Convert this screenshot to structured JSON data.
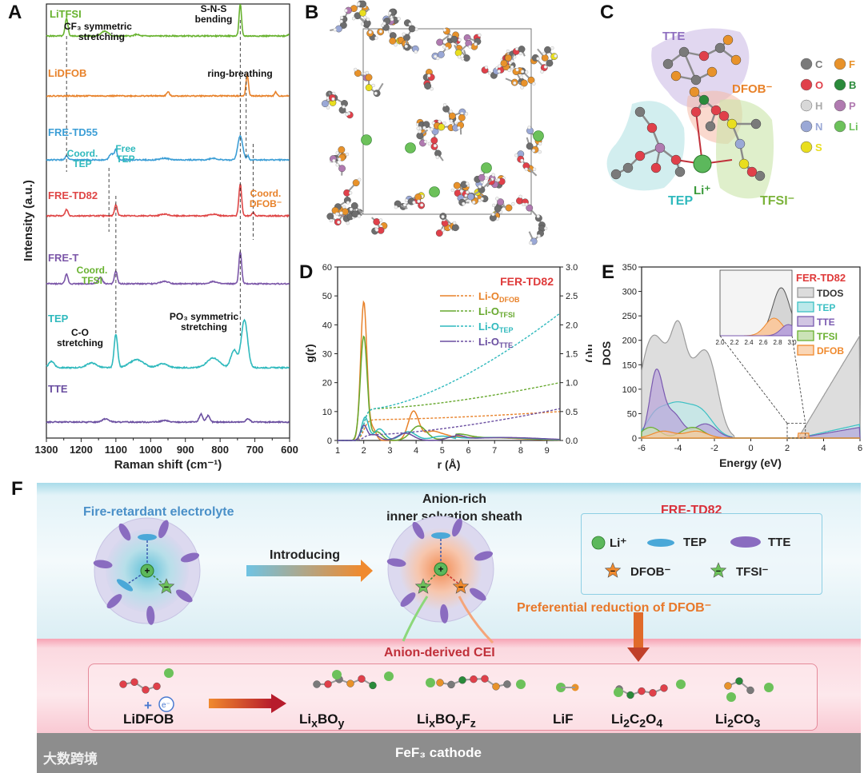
{
  "panels": {
    "A": "A",
    "B": "B",
    "C": "C",
    "D": "D",
    "E": "E",
    "F": "F"
  },
  "colors": {
    "LiTFSI": "#67b22e",
    "LiDFOB": "#e8822a",
    "FRE-TD55": "#3c9ed6",
    "FRE-TD82": "#df4646",
    "FRE-T": "#7b56a8",
    "TEP": "#2fb9bd",
    "TTE": "#6a4ea0",
    "DFOB": "#f08a2e"
  },
  "panel_a": {
    "ylabel": "Intensity (a.u.)",
    "xlabel": "Raman shift (cm⁻¹)",
    "ticks": [
      "1300",
      "1200",
      "1100",
      "1000",
      "900",
      "800",
      "700",
      "600"
    ],
    "labels": {
      "litfsi": "LiTFSI",
      "lidfob": "LiDFOB",
      "td55": "FRE-TD55",
      "td82": "FRE-TD82",
      "fret": "FRE-T",
      "tep": "TEP",
      "tte": "TTE"
    },
    "annotations": {
      "cf3_1": "CF₃ symmetric",
      "cf3_2": "stretching",
      "sns_1": "S-N-S",
      "sns_2": "bending",
      "ring": "ring-breathing",
      "coordtep_1": "Coord.",
      "coordtep_2": "TEP",
      "freetep_1": "Free",
      "freetep_2": "TEP",
      "coorddfob_1": "Coord.",
      "coorddfob_2": "DFOB⁻",
      "coordtfsi_1": "Coord.",
      "coordtfsi_2": "TFSI",
      "co_1": "C-O",
      "co_2": "stretching",
      "po3_1": "PO₃ symmetric",
      "po3_2": "stretching"
    }
  },
  "panel_c": {
    "tte": "TTE",
    "dfob": "DFOB⁻",
    "tep": "TEP",
    "tfsi": "TFSI⁻",
    "li": "Li⁺",
    "legend": [
      {
        "sym": "C",
        "color": "#7a7a7a"
      },
      {
        "sym": "O",
        "color": "#e0404a"
      },
      {
        "sym": "H",
        "color": "#d8d8d8"
      },
      {
        "sym": "N",
        "color": "#9aa8d6"
      },
      {
        "sym": "S",
        "color": "#e9de1e"
      },
      {
        "sym": "F",
        "color": "#e8922a"
      },
      {
        "sym": "B",
        "color": "#2a8a3a"
      },
      {
        "sym": "P",
        "color": "#b07ab0"
      },
      {
        "sym": "Li",
        "color": "#6cc15a"
      }
    ]
  },
  "panel_d": {
    "title": "FER-TD82",
    "ylabel_left": "g(r)",
    "ylabel_right": "n(r)",
    "xlabel": "r (Å)",
    "left_ticks": [
      "0",
      "10",
      "20",
      "30",
      "40",
      "50",
      "60"
    ],
    "right_ticks": [
      "0.0",
      "0.5",
      "1.0",
      "1.5",
      "2.0",
      "2.5",
      "3.0"
    ],
    "x_ticks": [
      "1",
      "2",
      "3",
      "4",
      "5",
      "6",
      "7",
      "8",
      "9"
    ],
    "legend": [
      {
        "main": "Li-O",
        "sub": "DFOB",
        "color": "#e8822a"
      },
      {
        "main": "Li-O",
        "sub": "TFSI",
        "color": "#67a82e"
      },
      {
        "main": "Li-O",
        "sub": "TEP",
        "color": "#2fb9bd"
      },
      {
        "main": "Li-O",
        "sub": "TTE",
        "color": "#6a4ea0"
      }
    ]
  },
  "panel_e": {
    "title": "FER-TD82",
    "ylabel": "DOS",
    "xlabel": "Energy (eV)",
    "y_ticks": [
      "0",
      "50",
      "100",
      "150",
      "200",
      "250",
      "300",
      "350"
    ],
    "x_ticks": [
      "-6",
      "-4",
      "-2",
      "0",
      "2",
      "4",
      "6"
    ],
    "inset_ticks": [
      "2.0",
      "2.2",
      "2.4",
      "2.6",
      "2.8",
      "3.0"
    ],
    "legend": [
      {
        "label": "TDOS",
        "color": "#9a9a9a"
      },
      {
        "label": "TEP",
        "color": "#3cc0c4"
      },
      {
        "label": "TTE",
        "color": "#7a5ab0"
      },
      {
        "label": "TFSI",
        "color": "#6ab030"
      },
      {
        "label": "DFOB",
        "color": "#f08a2e"
      }
    ]
  },
  "panel_f": {
    "fire": "Fire-retardant electrolyte",
    "anion_rich_1": "Anion-rich",
    "anion_rich_2": "inner solvation sheath",
    "introducing_1": "Introducing",
    "introducing_2": "LiDFOB",
    "fre_td82": "FRE-TD82",
    "legend_li": "Li⁺",
    "legend_tep": "TEP",
    "legend_tte": "TTE",
    "legend_dfob": "DFOB⁻",
    "legend_tfsi": "TFSI⁻",
    "preferential": "Preferential reduction of DFOB⁻",
    "anion_cei": "Anion-derived CEI",
    "products": [
      {
        "main": "LiDFOB",
        "html": "LiDFOB"
      },
      {
        "main": "LixBOy",
        "html": "Li<sub>x</sub>BO<sub>y</sub>"
      },
      {
        "main": "LixBOyFz",
        "html": "Li<sub>x</sub>BO<sub>y</sub>F<sub>z</sub>"
      },
      {
        "main": "LiF",
        "html": "LiF"
      },
      {
        "main": "Li2C2O4",
        "html": "Li<sub>2</sub>C<sub>2</sub>O<sub>4</sub>"
      },
      {
        "main": "Li2CO3",
        "html": "Li<sub>2</sub>CO<sub>3</sub>"
      }
    ],
    "electron": "e⁻",
    "plus": "+",
    "cathode": "FeF₃ cathode"
  },
  "watermark": "大数跨境"
}
